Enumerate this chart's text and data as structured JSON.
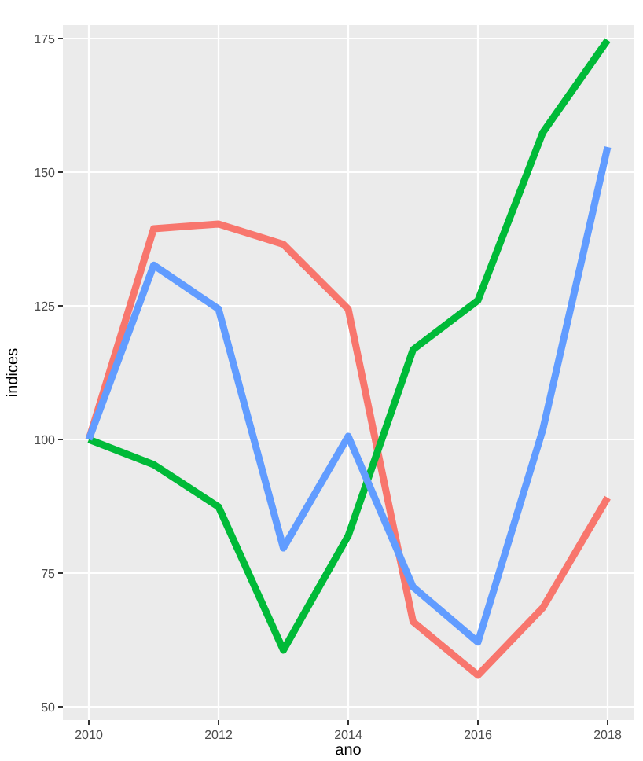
{
  "chart_data": {
    "type": "line",
    "xlabel": "ano",
    "ylabel": "indices",
    "x": [
      2010,
      2011,
      2012,
      2013,
      2014,
      2015,
      2016,
      2017,
      2018
    ],
    "series": [
      {
        "color": "#f8766d",
        "values": [
          100,
          139.4,
          140.3,
          136.5,
          124.4,
          65.9,
          55.9,
          68.5,
          89.1
        ]
      },
      {
        "color": "#00ba38",
        "values": [
          100,
          95.3,
          87.4,
          60.6,
          82,
          116.8,
          126,
          157.4,
          174.7
        ]
      },
      {
        "color": "#619cff",
        "values": [
          100,
          132.6,
          124.4,
          79.7,
          100.6,
          72.4,
          62.1,
          101.8,
          154.7
        ]
      }
    ],
    "xlim": [
      2009.6,
      2018.4
    ],
    "xticks": [
      2010,
      2012,
      2014,
      2016,
      2018
    ],
    "ylim": [
      47.5,
      177.5
    ],
    "yticks": [
      50,
      75,
      100,
      125,
      150,
      175
    ],
    "grid": true,
    "marker": "none",
    "line_style": "solid"
  }
}
